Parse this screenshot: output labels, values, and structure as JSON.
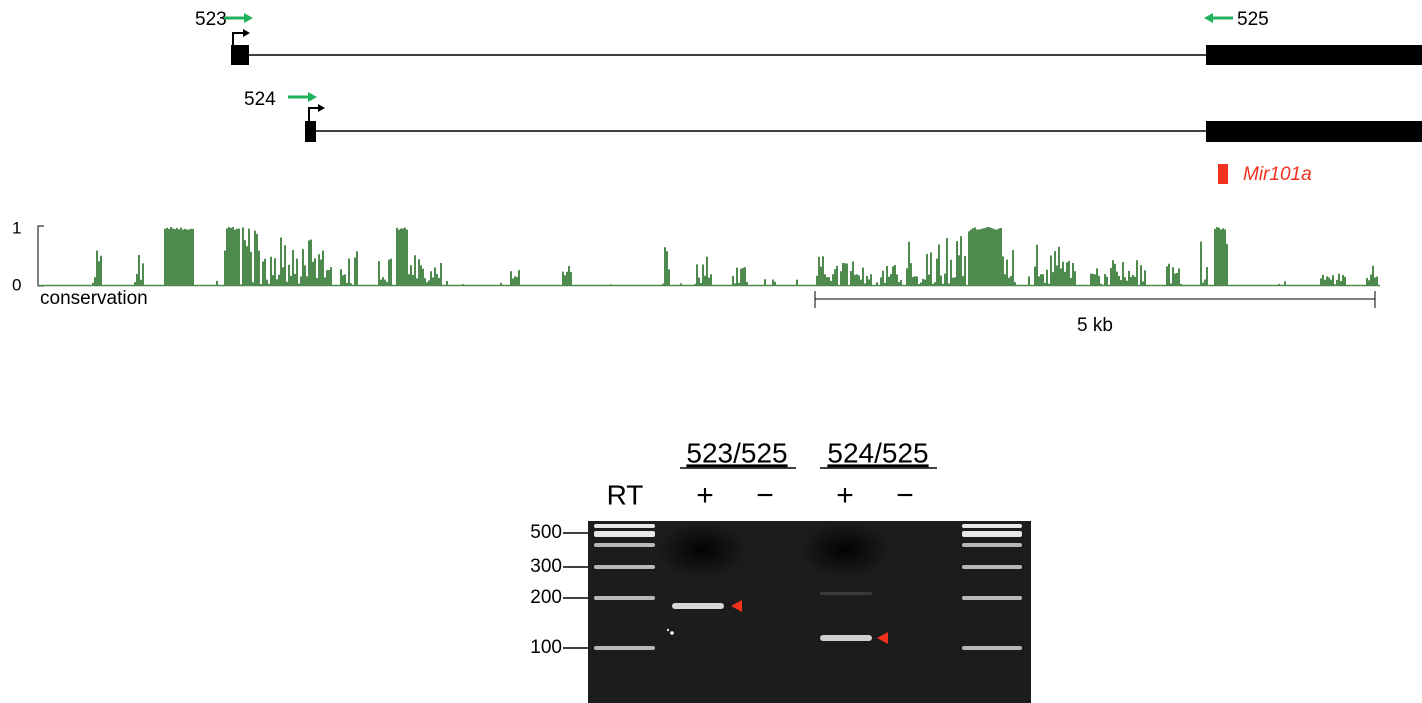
{
  "gene_diagram": {
    "primers": [
      "523",
      "525",
      "524"
    ],
    "mirna_label": "Mir101a"
  },
  "conservation": {
    "axis_max": "1",
    "axis_min": "0",
    "label": "conservation",
    "scale_bar": "5 kb"
  },
  "gel": {
    "groups": [
      "523/525",
      "524/525"
    ],
    "lanes": [
      "RT",
      "+",
      "−",
      "+",
      "−"
    ],
    "ladder": [
      "500",
      "300",
      "200",
      "100"
    ]
  }
}
